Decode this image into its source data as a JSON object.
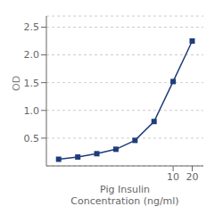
{
  "chart_data": {
    "type": "line",
    "x": [
      0.156,
      0.313,
      0.625,
      1.25,
      2.5,
      5.0,
      10.0,
      20.0
    ],
    "values": [
      0.12,
      0.16,
      0.22,
      0.3,
      0.46,
      0.8,
      1.52,
      2.25
    ],
    "xlabel": "Pig Insulin\nConcentration (ng/ml)",
    "ylabel": "OD",
    "log": "x",
    "xlim": [
      0.1,
      30
    ],
    "ylim": [
      0,
      2.7
    ],
    "xticks": [
      10,
      20
    ],
    "yticks": [
      0.5,
      {
        "value": 1.0,
        "label": "1.0"
      },
      1.5,
      {
        "value": 2.0,
        "label": "2.0"
      },
      2.5
    ],
    "grid": true,
    "color": "#1f3d7a",
    "marker": "square"
  }
}
